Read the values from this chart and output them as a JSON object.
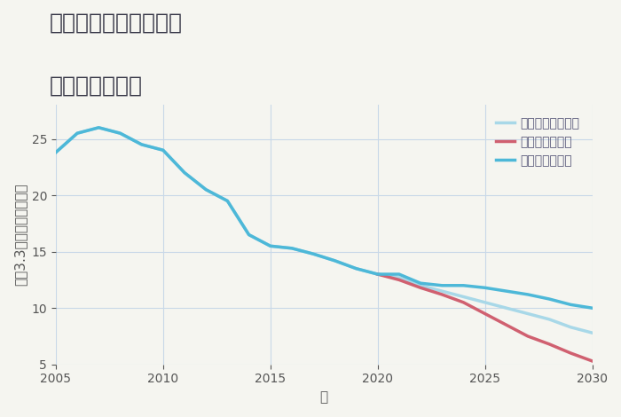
{
  "title_line1": "三重県伊賀市中柘植の",
  "title_line2": "土地の価格推移",
  "xlabel": "年",
  "ylabel": "坪（3.3㎡）単価（万円）",
  "background_color": "#f5f5f0",
  "plot_background": "#f5f5f0",
  "grid_color": "#c8d8e8",
  "xlim": [
    2005,
    2030
  ],
  "ylim": [
    5,
    28
  ],
  "yticks": [
    5,
    10,
    15,
    20,
    25
  ],
  "xticks": [
    2005,
    2010,
    2015,
    2020,
    2025,
    2030
  ],
  "good_scenario": {
    "x": [
      2005,
      2006,
      2007,
      2008,
      2009,
      2010,
      2011,
      2012,
      2013,
      2014,
      2015,
      2016,
      2017,
      2018,
      2019,
      2020,
      2021,
      2022,
      2023,
      2024,
      2025,
      2026,
      2027,
      2028,
      2029,
      2030
    ],
    "y": [
      23.8,
      25.5,
      26.0,
      25.5,
      24.5,
      24.0,
      22.0,
      20.5,
      19.5,
      16.5,
      15.5,
      15.3,
      14.8,
      14.2,
      13.5,
      13.0,
      13.0,
      12.2,
      12.0,
      12.0,
      11.8,
      11.5,
      11.2,
      10.8,
      10.3,
      10.0
    ],
    "color": "#4db8d8",
    "label": "グッドシナリオ",
    "linewidth": 2.5
  },
  "bad_scenario": {
    "x": [
      2020,
      2021,
      2022,
      2023,
      2024,
      2025,
      2026,
      2027,
      2028,
      2029,
      2030
    ],
    "y": [
      13.0,
      12.5,
      11.8,
      11.2,
      10.5,
      9.5,
      8.5,
      7.5,
      6.8,
      6.0,
      5.3
    ],
    "color": "#d06070",
    "label": "バッドシナリオ",
    "linewidth": 2.5
  },
  "normal_scenario": {
    "x": [
      2005,
      2006,
      2007,
      2008,
      2009,
      2010,
      2011,
      2012,
      2013,
      2014,
      2015,
      2016,
      2017,
      2018,
      2019,
      2020,
      2021,
      2022,
      2023,
      2024,
      2025,
      2026,
      2027,
      2028,
      2029,
      2030
    ],
    "y": [
      23.8,
      25.5,
      26.0,
      25.5,
      24.5,
      24.0,
      22.0,
      20.5,
      19.5,
      16.5,
      15.5,
      15.3,
      14.8,
      14.2,
      13.5,
      13.0,
      12.7,
      12.0,
      11.5,
      11.0,
      10.5,
      10.0,
      9.5,
      9.0,
      8.3,
      7.8
    ],
    "color": "#a8d8e8",
    "label": "ノーマルシナリオ",
    "linewidth": 2.5
  },
  "legend_loc": "upper right",
  "title_fontsize": 18,
  "axis_label_fontsize": 11,
  "tick_fontsize": 10,
  "legend_fontsize": 10
}
